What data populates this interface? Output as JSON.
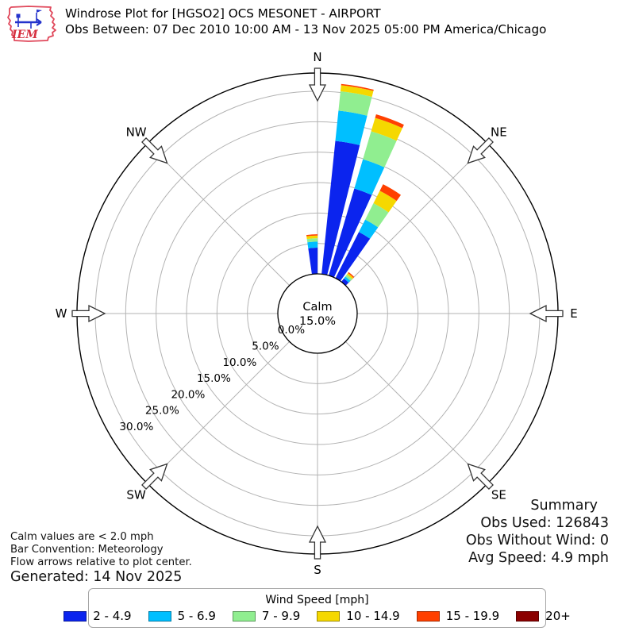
{
  "header": {
    "logo_text": "IEM",
    "title": "Windrose Plot for [HGSO2] OCS MESONET - AIRPORT",
    "subtitle": "Obs Between: 07 Dec 2010 10:00 AM - 13 Nov 2025 05:00 PM America/Chicago"
  },
  "chart_data": {
    "type": "windrose-polar-stacked-bar",
    "units": "mph",
    "legend_title": "Wind Speed [mph]",
    "compass_labels": [
      "N",
      "NE",
      "E",
      "SE",
      "S",
      "SW",
      "W",
      "NW"
    ],
    "ring_ticks_pct": [
      0,
      5,
      10,
      15,
      20,
      25,
      30
    ],
    "ring_tick_labels": [
      "0.0%",
      "5.0%",
      "10.0%",
      "15.0%",
      "20.0%",
      "25.0%",
      "30.0%"
    ],
    "rmax_pct": 33,
    "grid": true,
    "calm": {
      "label": "Calm",
      "pct_label": "15.0%",
      "pct": 15.0
    },
    "speed_bins": [
      {
        "label": "2 - 4.9",
        "color": "#0b24ee"
      },
      {
        "label": "5 - 6.9",
        "color": "#00bfff"
      },
      {
        "label": "7 - 9.9",
        "color": "#90ee90"
      },
      {
        "label": "10 - 14.9",
        "color": "#f5d800"
      },
      {
        "label": "15 - 19.9",
        "color": "#ff4000"
      },
      {
        "label": "20+",
        "color": "#8b0000"
      }
    ],
    "bar_width_deg": 8.2,
    "bars": [
      {
        "direction_deg": 356,
        "values_pct": [
          4.3,
          1.0,
          0.55,
          0.45,
          0.2,
          0
        ]
      },
      {
        "direction_deg": 10,
        "values_pct": [
          22.0,
          5.0,
          3.2,
          1.0,
          0.2,
          0
        ]
      },
      {
        "direction_deg": 20.5,
        "values_pct": [
          14.9,
          5.0,
          4.8,
          2.3,
          0.6,
          0
        ]
      },
      {
        "direction_deg": 31,
        "values_pct": [
          8.5,
          2.3,
          3.0,
          2.3,
          1.2,
          0
        ]
      },
      {
        "direction_deg": 41,
        "values_pct": [
          0.7,
          0.4,
          0.4,
          0.3,
          0.2,
          0
        ]
      }
    ]
  },
  "summary": {
    "title": "Summary",
    "obs_used": "Obs Used: 126843",
    "obs_without_wind": "Obs Without Wind: 0",
    "avg_speed": "Avg Speed: 4.9 mph"
  },
  "notes": {
    "calm": "Calm values are < 2.0 mph",
    "convention": "Bar Convention: Meteorology",
    "arrows": "Flow arrows relative to plot center.",
    "generated": "Generated: 14 Nov 2025"
  }
}
